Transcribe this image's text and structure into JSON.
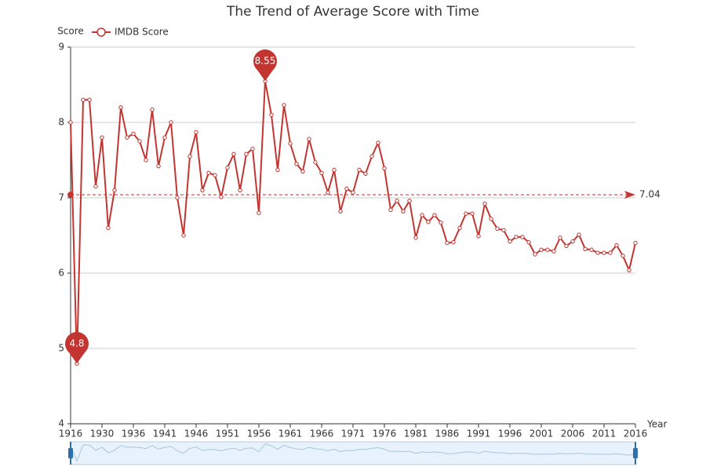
{
  "chart_data": {
    "type": "line",
    "title": "The Trend of Average Score with Time",
    "y_axis_label": "Score",
    "x_axis_label": "Year",
    "categories": [
      "1916",
      null,
      null,
      null,
      null,
      "1930",
      null,
      null,
      null,
      null,
      "1936",
      null,
      null,
      null,
      null,
      "1941",
      null,
      null,
      null,
      null,
      "1946",
      null,
      null,
      null,
      null,
      "1951",
      null,
      null,
      null,
      null,
      "1956",
      null,
      null,
      null,
      null,
      "1961",
      null,
      null,
      null,
      null,
      "1966",
      null,
      null,
      null,
      null,
      "1971",
      null,
      null,
      null,
      null,
      "1976",
      null,
      null,
      null,
      null,
      "1981",
      null,
      null,
      null,
      null,
      "1986",
      null,
      null,
      null,
      null,
      "1991",
      null,
      null,
      null,
      null,
      "1996",
      null,
      null,
      null,
      null,
      "2001",
      null,
      null,
      null,
      null,
      "2006",
      null,
      null,
      null,
      null,
      "2011",
      null,
      null,
      null,
      null,
      "2016"
    ],
    "series": [
      {
        "name": "IMDB Score",
        "color": "#c23531",
        "values": [
          8.0,
          4.8,
          8.3,
          8.3,
          7.15,
          7.8,
          6.6,
          7.1,
          8.2,
          7.8,
          7.85,
          7.75,
          7.5,
          8.17,
          7.42,
          7.8,
          8.0,
          7.0,
          6.5,
          7.55,
          7.87,
          7.1,
          7.33,
          7.3,
          7.01,
          7.4,
          7.58,
          7.1,
          7.58,
          7.65,
          6.8,
          8.55,
          8.1,
          7.37,
          8.23,
          7.72,
          7.45,
          7.35,
          7.78,
          7.47,
          7.33,
          7.07,
          7.37,
          6.82,
          7.12,
          7.07,
          7.37,
          7.32,
          7.55,
          7.73,
          7.39,
          6.84,
          6.96,
          6.82,
          6.96,
          6.47,
          6.77,
          6.68,
          6.77,
          6.67,
          6.4,
          6.41,
          6.6,
          6.79,
          6.79,
          6.49,
          6.92,
          6.72,
          6.59,
          6.57,
          6.42,
          6.48,
          6.48,
          6.41,
          6.25,
          6.31,
          6.31,
          6.29,
          6.47,
          6.36,
          6.42,
          6.51,
          6.32,
          6.31,
          6.27,
          6.27,
          6.27,
          6.37,
          6.23,
          6.04,
          6.4
        ]
      }
    ],
    "mark_points": [
      8.55,
      4.8
    ],
    "mark_line": 7.04,
    "ylim": [
      4,
      9
    ],
    "yticks": [
      4,
      5,
      6,
      7,
      8,
      9
    ],
    "grid": true
  }
}
